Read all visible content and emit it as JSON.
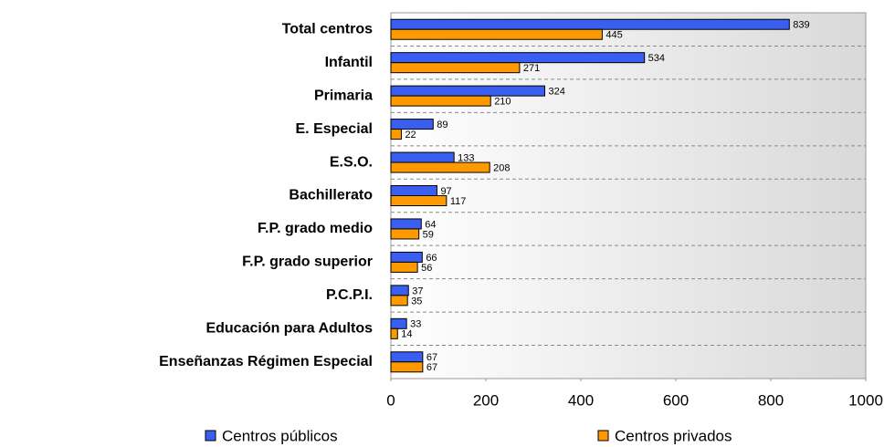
{
  "chart_data": {
    "type": "bar",
    "categories": [
      "Total centros",
      "Infantil",
      "Primaria",
      "E. Especial",
      "E.S.O.",
      "Bachillerato",
      "F.P. grado medio",
      "F.P. grado superior",
      "P.C.P.I.",
      "Educación para Adultos",
      "Enseñanzas Régimen Especial"
    ],
    "series": [
      {
        "name": "Centros públicos",
        "color": "#3a5ff0",
        "values": [
          839,
          534,
          324,
          89,
          133,
          97,
          64,
          66,
          37,
          33,
          67
        ]
      },
      {
        "name": "Centros privados",
        "color": "#ff9900",
        "values": [
          445,
          271,
          210,
          22,
          208,
          117,
          59,
          56,
          35,
          14,
          67
        ]
      }
    ],
    "xlim": [
      0,
      1000
    ],
    "xticks": [
      0,
      200,
      400,
      600,
      800,
      1000
    ],
    "legend": "bottom"
  }
}
